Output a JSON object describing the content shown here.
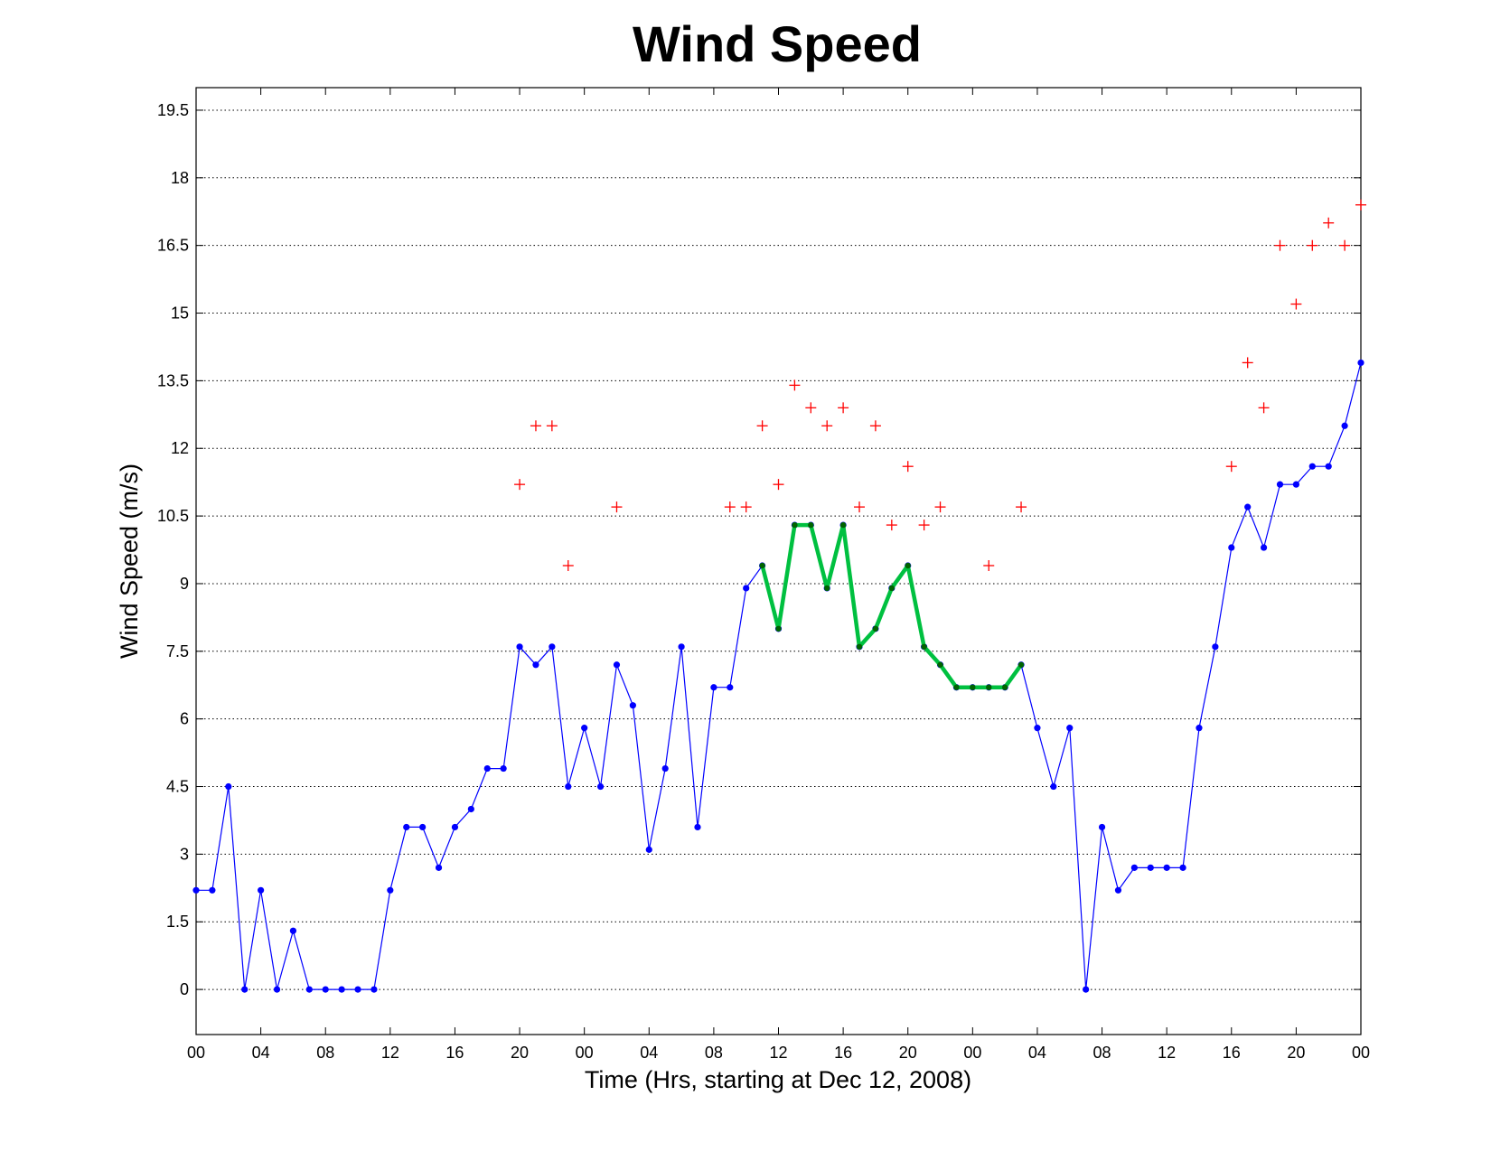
{
  "chart_data": {
    "type": "line",
    "title": "Wind Speed",
    "xlabel": "Time (Hrs, starting at Dec 12, 2008)",
    "ylabel": "Wind Speed (m/s)",
    "xlim": [
      0,
      72
    ],
    "ylim": [
      -1,
      20
    ],
    "yticks": [
      0,
      1.5,
      3,
      4.5,
      6,
      7.5,
      9,
      10.5,
      12,
      13.5,
      15,
      16.5,
      18,
      19.5
    ],
    "ytick_labels": [
      "0",
      "1.5",
      "3",
      "4.5",
      "6",
      "7.5",
      "9",
      "10.5",
      "12",
      "13.5",
      "15",
      "16.5",
      "18",
      "19.5"
    ],
    "xticks": [
      0,
      4,
      8,
      12,
      16,
      20,
      24,
      28,
      32,
      36,
      40,
      44,
      48,
      52,
      56,
      60,
      64,
      68,
      72
    ],
    "xtick_labels": [
      "00",
      "04",
      "08",
      "12",
      "16",
      "20",
      "00",
      "04",
      "08",
      "12",
      "16",
      "20",
      "00",
      "04",
      "08",
      "12",
      "16",
      "20",
      "00"
    ],
    "grid": true,
    "colors": {
      "wind": "#0000ff",
      "highlight": "#00c040",
      "gust": "#ff0000"
    },
    "x": [
      0,
      1,
      2,
      3,
      4,
      5,
      6,
      7,
      8,
      9,
      10,
      11,
      12,
      13,
      14,
      15,
      16,
      17,
      18,
      19,
      20,
      21,
      22,
      23,
      24,
      25,
      26,
      27,
      28,
      29,
      30,
      31,
      32,
      33,
      34,
      35,
      36,
      37,
      38,
      39,
      40,
      41,
      42,
      43,
      44,
      45,
      46,
      47,
      48,
      49,
      50,
      51,
      52,
      53,
      54,
      55,
      56,
      57,
      58,
      59,
      60,
      61,
      62,
      63,
      64,
      65,
      66,
      67,
      68,
      69,
      70,
      71,
      72
    ],
    "series": [
      {
        "style": "line-dot",
        "color": "#0000ff",
        "values": [
          2.2,
          2.2,
          4.5,
          0,
          2.2,
          0,
          1.3,
          0,
          0,
          0,
          0,
          0,
          2.2,
          3.6,
          3.6,
          2.7,
          3.6,
          4.0,
          4.9,
          4.9,
          7.6,
          7.2,
          7.6,
          4.5,
          5.8,
          4.5,
          7.2,
          6.3,
          3.1,
          4.9,
          7.6,
          3.6,
          6.7,
          6.7,
          8.9,
          9.4,
          8.0,
          10.3,
          10.3,
          8.9,
          10.3,
          7.6,
          8.0,
          8.9,
          9.4,
          7.6,
          7.2,
          6.7,
          6.7,
          6.7,
          6.7,
          7.2,
          5.8,
          4.5,
          5.8,
          0,
          3.6,
          2.2,
          2.7,
          2.7,
          2.7,
          2.7,
          5.8,
          7.6,
          9.8,
          10.7,
          9.8,
          11.2,
          11.2,
          11.6,
          11.6,
          12.5,
          13.9
        ]
      },
      {
        "style": "thick-line",
        "color": "#00c040",
        "x": [
          35,
          36,
          37,
          38,
          39,
          40,
          41,
          42,
          43,
          44,
          45,
          46,
          47,
          48,
          49,
          50,
          51
        ],
        "values": [
          9.4,
          8.0,
          10.3,
          10.3,
          8.9,
          10.3,
          7.6,
          8.0,
          8.9,
          9.4,
          7.6,
          7.2,
          6.7,
          6.7,
          6.7,
          6.7,
          7.2
        ]
      },
      {
        "style": "plus-marker",
        "color": "#ff0000",
        "x": [
          20,
          21,
          22,
          23,
          26,
          33,
          34,
          35,
          36,
          37,
          38,
          39,
          40,
          41,
          42,
          43,
          44,
          45,
          46,
          49,
          51,
          64,
          65,
          66,
          67,
          68,
          69,
          70,
          71,
          72
        ],
        "values": [
          11.2,
          12.5,
          12.5,
          9.4,
          10.7,
          10.7,
          10.7,
          12.5,
          11.2,
          13.4,
          12.9,
          12.5,
          12.9,
          10.7,
          12.5,
          10.3,
          11.6,
          10.3,
          10.7,
          9.4,
          10.7,
          11.6,
          13.9,
          12.9,
          16.5,
          15.2,
          16.5,
          17.0,
          16.5,
          17.4
        ]
      }
    ]
  }
}
